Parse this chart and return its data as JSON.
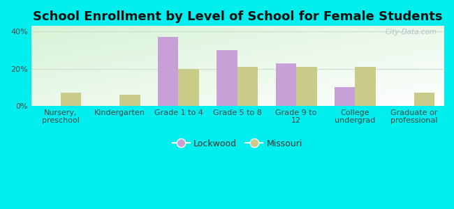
{
  "title": "School Enrollment by Level of School for Female Students",
  "categories": [
    "Nursery,\npreschool",
    "Kindergarten",
    "Grade 1 to 4",
    "Grade 5 to 8",
    "Grade 9 to\n12",
    "College\nundergrad",
    "Graduate or\nprofessional"
  ],
  "lockwood": [
    0,
    0,
    37,
    30,
    23,
    10,
    0
  ],
  "missouri": [
    7,
    6,
    20,
    21,
    21,
    21,
    7
  ],
  "lockwood_color": "#c8a0d8",
  "missouri_color": "#c8cc88",
  "bar_width": 0.35,
  "ylim": [
    0,
    43
  ],
  "yticks": [
    0,
    20,
    40
  ],
  "ytick_labels": [
    "0%",
    "20%",
    "40%"
  ],
  "background_color": "#00eeee",
  "title_fontsize": 13,
  "axis_fontsize": 8,
  "legend_labels": [
    "Lockwood",
    "Missouri"
  ],
  "watermark": "City-Data.com",
  "grid_color": "#ccddcc",
  "plot_left_color": "#d8eedd",
  "plot_right_color": "#f4faf4"
}
